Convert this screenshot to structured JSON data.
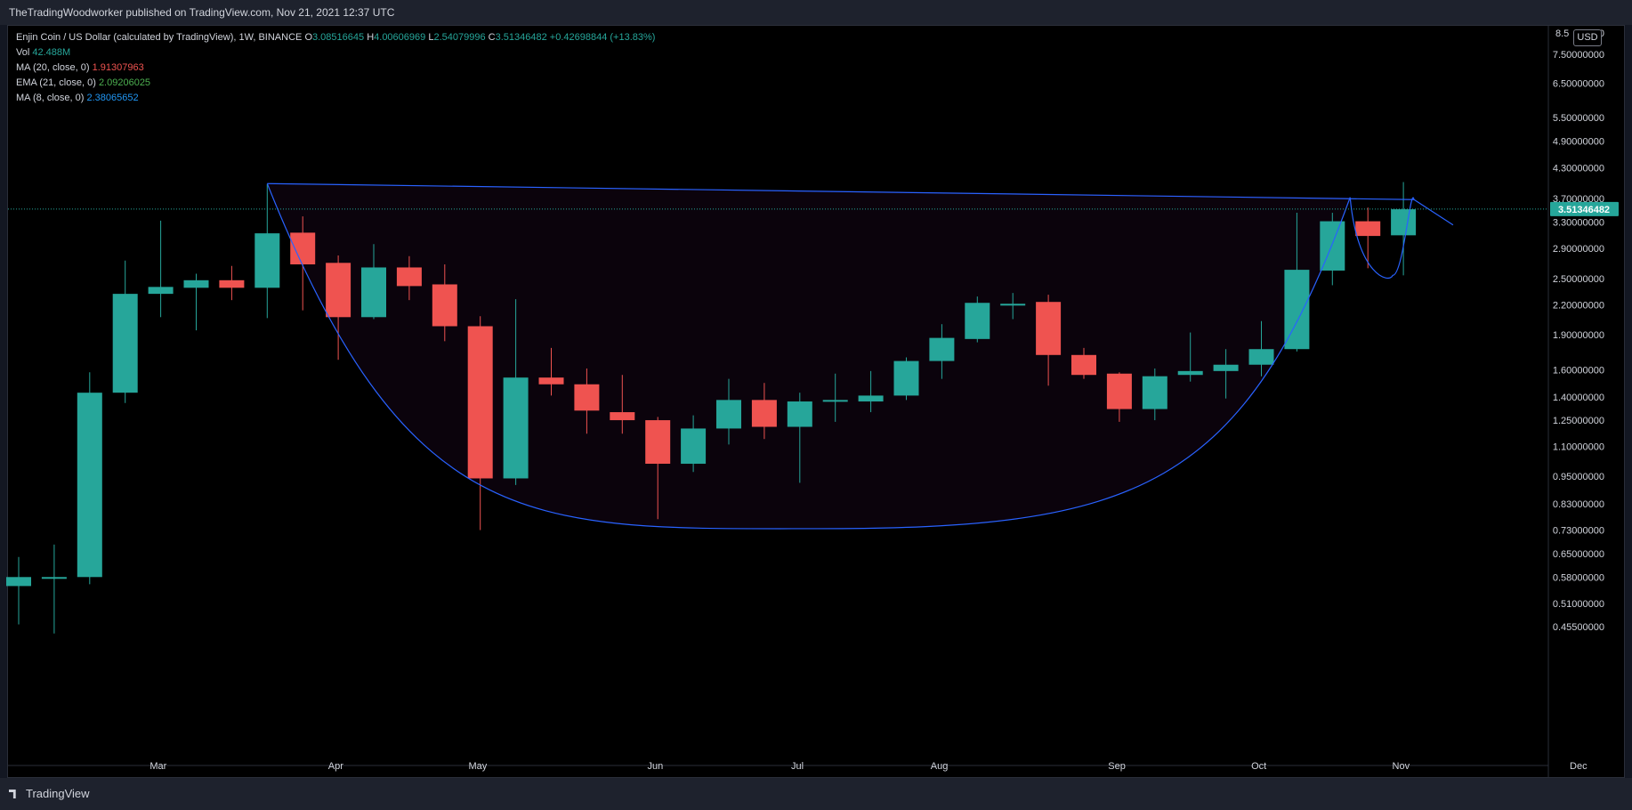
{
  "header": {
    "published": "TheTradingWoodworker published on TradingView.com, Nov 21, 2021 12:37 UTC"
  },
  "footer": {
    "brand": "TradingView"
  },
  "symbol": {
    "title": "Enjin Coin / US Dollar (calculated by TradingView), 1W, BINANCE",
    "o_label": "O",
    "open": "3.08516645",
    "h_label": "H",
    "high": "4.00606969",
    "l_label": "L",
    "low": "2.54079996",
    "c_label": "C",
    "close": "3.51346482",
    "change": "+0.42698844 (+13.83%)"
  },
  "indicators": {
    "vol_label": "Vol",
    "vol_value": "42.488M",
    "ma20_label": "MA (20, close, 0)",
    "ma20_value": "1.91307963",
    "ema21_label": "EMA (21, close, 0)",
    "ema21_value": "2.09206025",
    "ma8_label": "MA (8, close, 0)",
    "ma8_value": "2.38065652"
  },
  "currency_button": "USD",
  "colors": {
    "up": "#26a69a",
    "down": "#ef5350",
    "pattern": "#2962ff",
    "ma20": "#ef5350",
    "ema21": "#4caf50",
    "ma8": "#2196f3",
    "price_tag": "#26a69a",
    "axis_text": "#d1d4dc"
  },
  "chart_data": {
    "type": "candlestick",
    "scale": "log",
    "ylim": [
      0.42,
      8.5
    ],
    "price_ticks": [
      "0.45500000",
      "0.51000000",
      "0.58000000",
      "0.65000000",
      "0.73000000",
      "0.83000000",
      "0.95000000",
      "1.10000000",
      "1.25000000",
      "1.40000000",
      "1.60000000",
      "1.90000000",
      "2.20000000",
      "2.50000000",
      "2.90000000",
      "3.30000000",
      "3.70000000",
      "4.30000000",
      "4.90000000",
      "5.50000000",
      "6.50000000",
      "7.50000000"
    ],
    "top_tick_partial": "8.5",
    "top_tick_partial_end": "000",
    "last_price_label": "3.51346482",
    "last_price": 3.51346482,
    "month_labels": [
      {
        "label": "Mar",
        "index": 2
      },
      {
        "label": "Apr",
        "index": 7
      },
      {
        "label": "May",
        "index": 11
      },
      {
        "label": "Jun",
        "index": 16
      },
      {
        "label": "Jul",
        "index": 20
      },
      {
        "label": "Aug",
        "index": 24
      },
      {
        "label": "Sep",
        "index": 29
      },
      {
        "label": "Oct",
        "index": 33
      },
      {
        "label": "Nov",
        "index": 37
      },
      {
        "label": "Dec",
        "index": 42
      }
    ],
    "candles": [
      {
        "o": 0.555,
        "h": 0.64,
        "l": 0.46,
        "c": 0.58
      },
      {
        "o": 0.58,
        "h": 0.68,
        "l": 0.44,
        "c": 0.58
      },
      {
        "o": 0.58,
        "h": 1.58,
        "l": 0.56,
        "c": 1.43
      },
      {
        "o": 1.43,
        "h": 2.73,
        "l": 1.36,
        "c": 2.32
      },
      {
        "o": 2.32,
        "h": 3.32,
        "l": 2.07,
        "c": 2.4
      },
      {
        "o": 2.39,
        "h": 2.56,
        "l": 1.94,
        "c": 2.48
      },
      {
        "o": 2.48,
        "h": 2.66,
        "l": 2.25,
        "c": 2.39
      },
      {
        "o": 2.39,
        "h": 3.97,
        "l": 2.06,
        "c": 3.12
      },
      {
        "o": 3.13,
        "h": 3.39,
        "l": 2.14,
        "c": 2.68
      },
      {
        "o": 2.7,
        "h": 2.8,
        "l": 1.68,
        "c": 2.07
      },
      {
        "o": 2.07,
        "h": 2.96,
        "l": 2.05,
        "c": 2.64
      },
      {
        "o": 2.64,
        "h": 2.79,
        "l": 2.25,
        "c": 2.41
      },
      {
        "o": 2.43,
        "h": 2.68,
        "l": 1.84,
        "c": 1.98
      },
      {
        "o": 1.98,
        "h": 2.08,
        "l": 0.73,
        "c": 0.94
      },
      {
        "o": 0.94,
        "h": 2.26,
        "l": 0.91,
        "c": 1.54
      },
      {
        "o": 1.54,
        "h": 1.78,
        "l": 1.41,
        "c": 1.49
      },
      {
        "o": 1.49,
        "h": 1.61,
        "l": 1.17,
        "c": 1.31
      },
      {
        "o": 1.3,
        "h": 1.56,
        "l": 1.17,
        "c": 1.25
      },
      {
        "o": 1.25,
        "h": 1.27,
        "l": 0.77,
        "c": 1.01
      },
      {
        "o": 1.01,
        "h": 1.28,
        "l": 0.97,
        "c": 1.2
      },
      {
        "o": 1.2,
        "h": 1.53,
        "l": 1.11,
        "c": 1.38
      },
      {
        "o": 1.38,
        "h": 1.5,
        "l": 1.14,
        "c": 1.21
      },
      {
        "o": 1.21,
        "h": 1.43,
        "l": 0.92,
        "c": 1.37
      },
      {
        "o": 1.37,
        "h": 1.57,
        "l": 1.24,
        "c": 1.38
      },
      {
        "o": 1.37,
        "h": 1.59,
        "l": 1.3,
        "c": 1.41
      },
      {
        "o": 1.41,
        "h": 1.7,
        "l": 1.38,
        "c": 1.67
      },
      {
        "o": 1.67,
        "h": 2.0,
        "l": 1.53,
        "c": 1.87
      },
      {
        "o": 1.86,
        "h": 2.29,
        "l": 1.83,
        "c": 2.22
      },
      {
        "o": 2.21,
        "h": 2.33,
        "l": 2.05,
        "c": 2.21
      },
      {
        "o": 2.23,
        "h": 2.31,
        "l": 1.48,
        "c": 1.72
      },
      {
        "o": 1.72,
        "h": 1.78,
        "l": 1.53,
        "c": 1.56
      },
      {
        "o": 1.57,
        "h": 1.58,
        "l": 1.24,
        "c": 1.32
      },
      {
        "o": 1.32,
        "h": 1.61,
        "l": 1.25,
        "c": 1.55
      },
      {
        "o": 1.56,
        "h": 1.92,
        "l": 1.51,
        "c": 1.59
      },
      {
        "o": 1.59,
        "h": 1.77,
        "l": 1.39,
        "c": 1.64
      },
      {
        "o": 1.64,
        "h": 2.03,
        "l": 1.55,
        "c": 1.77
      },
      {
        "o": 1.77,
        "h": 3.45,
        "l": 1.75,
        "c": 2.61
      },
      {
        "o": 2.6,
        "h": 3.45,
        "l": 2.42,
        "c": 3.31
      },
      {
        "o": 3.31,
        "h": 3.54,
        "l": 2.63,
        "c": 3.08
      },
      {
        "o": 3.09,
        "h": 4.01,
        "l": 2.54,
        "c": 3.51
      }
    ],
    "pattern": {
      "name": "cup and handle",
      "rim_line": [
        {
          "i": 7,
          "p": 3.98
        },
        {
          "i": 39.3,
          "p": 3.68
        }
      ],
      "cup": {
        "left": {
          "i": 7,
          "p": 3.98
        },
        "bottom": {
          "i": 22.5,
          "p": 0.735
        },
        "right": {
          "i": 37.5,
          "p": 3.72
        }
      },
      "handle": [
        {
          "i": 37.5,
          "p": 3.72
        },
        {
          "i": 38.3,
          "p": 2.54
        },
        {
          "i": 39.3,
          "p": 3.68
        },
        {
          "i": 40.4,
          "p": 3.25
        }
      ]
    }
  }
}
